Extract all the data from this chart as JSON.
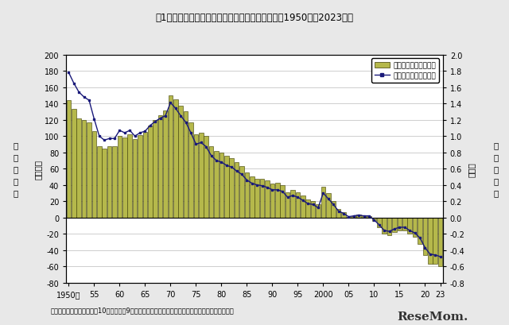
{
  "title": "図1　総人口の人口増減数及び人口増減率の推移（1950年～2023年）",
  "ylabel_left": "（万人）",
  "ylabel_right": "（％）",
  "left_label_chars": [
    "人",
    "口",
    "増",
    "減",
    "数"
  ],
  "right_label_chars": [
    "人",
    "口",
    "増",
    "減",
    "率"
  ],
  "note": "注）　人口増減率は、前年10月から当年9月までの人口増減数を前年人口（期首人口）で除したもの",
  "legend_bar": "人口増減数（左目盛）",
  "legend_line": "人口増減率（右目盛）",
  "years": [
    1950,
    1951,
    1952,
    1953,
    1954,
    1955,
    1956,
    1957,
    1958,
    1959,
    1960,
    1961,
    1962,
    1963,
    1964,
    1965,
    1966,
    1967,
    1968,
    1969,
    1970,
    1971,
    1972,
    1973,
    1974,
    1975,
    1976,
    1977,
    1978,
    1979,
    1980,
    1981,
    1982,
    1983,
    1984,
    1985,
    1986,
    1987,
    1988,
    1989,
    1990,
    1991,
    1992,
    1993,
    1994,
    1995,
    1996,
    1997,
    1998,
    1999,
    2000,
    2001,
    2002,
    2003,
    2004,
    2005,
    2006,
    2007,
    2008,
    2009,
    2010,
    2011,
    2012,
    2013,
    2014,
    2015,
    2016,
    2017,
    2018,
    2019,
    2020,
    2021,
    2022,
    2023
  ],
  "pop_change": [
    144,
    133,
    122,
    120,
    117,
    106,
    88,
    85,
    88,
    88,
    100,
    98,
    102,
    96,
    101,
    105,
    113,
    120,
    126,
    131,
    150,
    145,
    137,
    130,
    117,
    102,
    104,
    100,
    88,
    82,
    80,
    76,
    73,
    68,
    63,
    55,
    50,
    48,
    48,
    46,
    42,
    43,
    40,
    31,
    34,
    31,
    27,
    22,
    20,
    16,
    38,
    30,
    20,
    10,
    7,
    1,
    2,
    4,
    3,
    2,
    -4,
    -12,
    -20,
    -22,
    -18,
    -16,
    -16,
    -20,
    -24,
    -32,
    -46,
    -57,
    -57,
    -60
  ],
  "pop_rate": [
    1.78,
    1.65,
    1.54,
    1.48,
    1.44,
    1.21,
    1.0,
    0.95,
    0.97,
    0.97,
    1.07,
    1.04,
    1.07,
    1.0,
    1.04,
    1.06,
    1.13,
    1.18,
    1.22,
    1.25,
    1.41,
    1.34,
    1.25,
    1.17,
    1.04,
    0.9,
    0.92,
    0.87,
    0.76,
    0.7,
    0.68,
    0.64,
    0.62,
    0.57,
    0.53,
    0.46,
    0.42,
    0.4,
    0.39,
    0.37,
    0.34,
    0.34,
    0.32,
    0.25,
    0.27,
    0.25,
    0.21,
    0.17,
    0.16,
    0.12,
    0.3,
    0.23,
    0.16,
    0.08,
    0.05,
    0.01,
    0.02,
    0.03,
    0.02,
    0.02,
    -0.03,
    -0.09,
    -0.16,
    -0.17,
    -0.14,
    -0.12,
    -0.12,
    -0.16,
    -0.19,
    -0.25,
    -0.37,
    -0.45,
    -0.46,
    -0.48
  ],
  "bar_color": "#b5b84b",
  "bar_edge_color": "#3a3a00",
  "line_color": "#1a1a7a",
  "marker": "s",
  "ylim_left": [
    -80,
    200
  ],
  "ylim_right": [
    -0.8,
    2.0
  ],
  "yticks_left": [
    -80,
    -60,
    -40,
    -20,
    0,
    20,
    40,
    60,
    80,
    100,
    120,
    140,
    160,
    180,
    200
  ],
  "yticks_right": [
    -0.8,
    -0.6,
    -0.4,
    -0.2,
    0.0,
    0.2,
    0.4,
    0.6,
    0.8,
    1.0,
    1.2,
    1.4,
    1.6,
    1.8,
    2.0
  ],
  "xtick_labels": [
    "1950年",
    "55",
    "60",
    "65",
    "70",
    "75",
    "80",
    "85",
    "90",
    "95",
    "2000",
    "05",
    "10",
    "15",
    "20",
    "23"
  ],
  "xtick_positions": [
    1950,
    1955,
    1960,
    1965,
    1970,
    1975,
    1980,
    1985,
    1990,
    1995,
    2000,
    2005,
    2010,
    2015,
    2020,
    2023
  ],
  "bg_color": "#e8e8e8",
  "plot_bg_color": "#ffffff",
  "grid_color": "#bbbbbb",
  "resemom_text": "ReseMom."
}
